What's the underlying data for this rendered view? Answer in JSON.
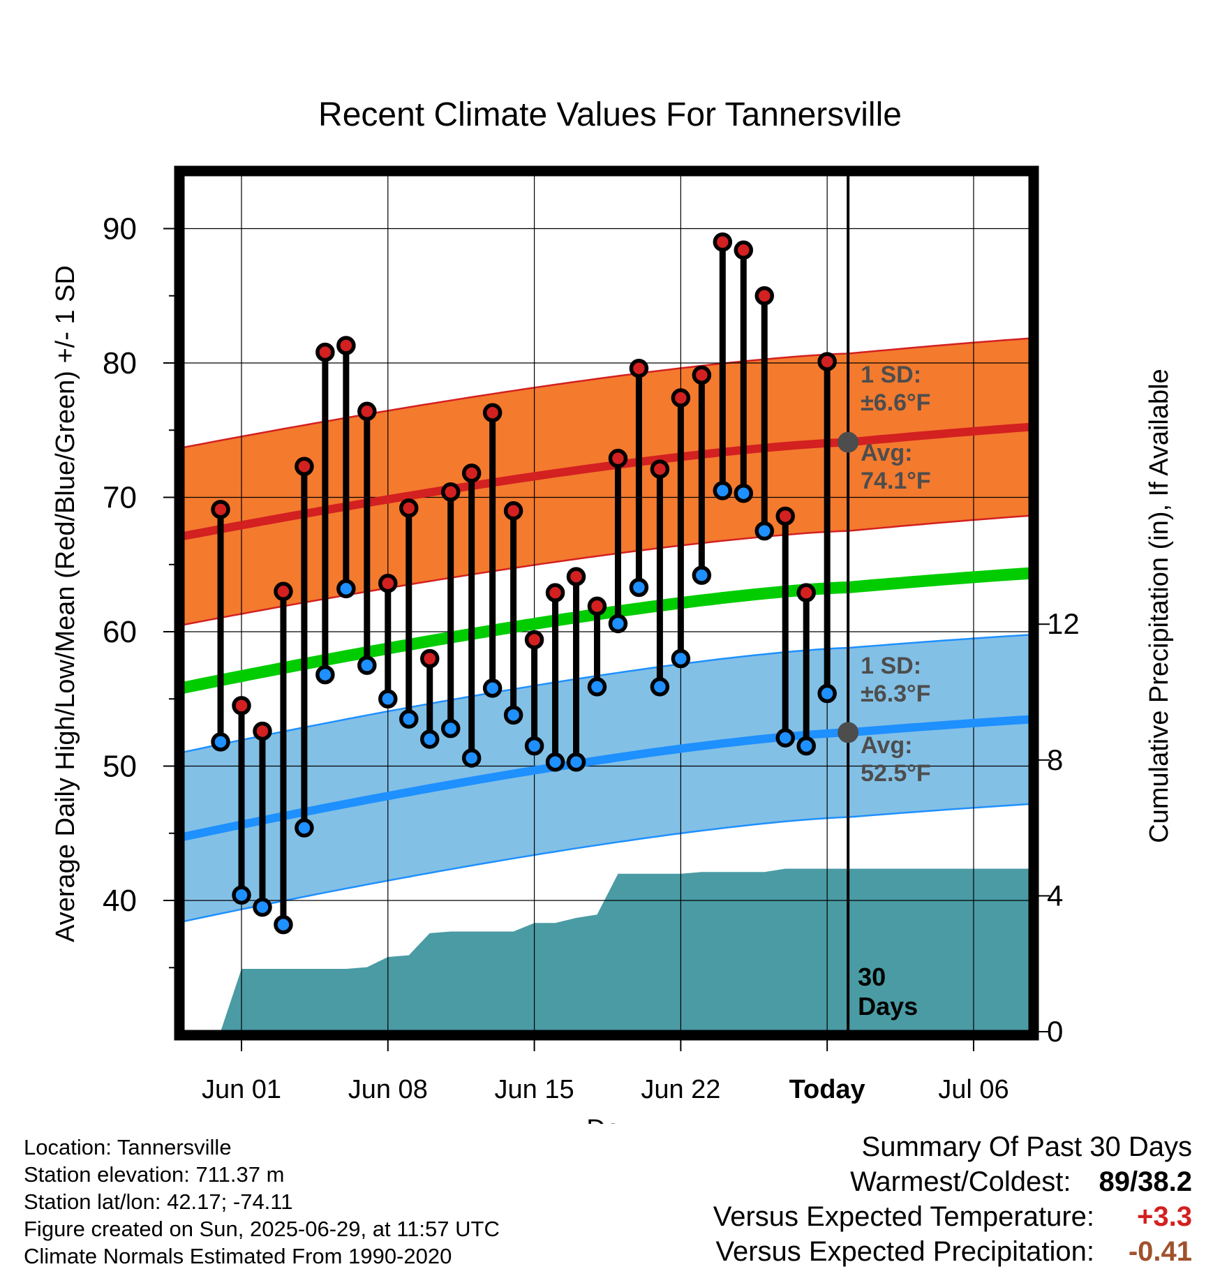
{
  "chart_data": {
    "type": "line",
    "title": "Recent Climate Values For Tannersville",
    "xlabel": "Day",
    "ylabel_left": "Average Daily High/Low/Mean (Red/Blue/Green) +/- 1 SD",
    "ylabel_right": "Cumulative Precipitation (in), If Available",
    "ylim_left": [
      30,
      95
    ],
    "ylim_right": [
      0,
      22
    ],
    "y_ticks_left": [
      40,
      50,
      60,
      70,
      80,
      90
    ],
    "y_ticks_right": [
      0,
      4,
      8,
      12
    ],
    "x_ticks": [
      "Jun 01",
      "Jun 08",
      "Jun 15",
      "Jun 22",
      "Today",
      "Jul 06"
    ],
    "today_marker": "30\nDays",
    "daily_high": [
      69.1,
      54.5,
      52.6,
      63.0,
      72.3,
      80.8,
      81.3,
      76.4,
      63.6,
      69.2,
      58.0,
      70.4,
      71.8,
      76.3,
      69.0,
      59.4,
      62.9,
      64.1,
      61.9,
      72.9,
      79.6,
      72.1,
      77.4,
      79.1,
      89.0,
      88.4,
      85.0,
      68.6,
      62.9,
      80.1
    ],
    "daily_low": [
      51.8,
      40.4,
      39.5,
      38.2,
      45.4,
      56.8,
      63.2,
      57.5,
      55.0,
      53.5,
      52.0,
      52.8,
      50.6,
      55.8,
      53.8,
      51.5,
      50.3,
      50.3,
      55.9,
      60.6,
      63.3,
      55.9,
      58.0,
      64.2,
      70.5,
      70.3,
      67.5,
      52.1,
      51.5,
      55.4
    ],
    "normal_high": {
      "start": 66.9,
      "today": 74.1,
      "end": 75.5
    },
    "normal_high_sd": 6.6,
    "normal_low": {
      "start": 44.5,
      "today": 52.5,
      "end": 53.7
    },
    "normal_low_sd": 6.3,
    "normal_mean": {
      "start": 55.6,
      "today": 63.3,
      "end": 64.6
    },
    "cumulative_precip": [
      0,
      1.85,
      1.85,
      1.85,
      1.85,
      1.85,
      1.85,
      1.9,
      2.2,
      2.25,
      2.9,
      2.95,
      2.95,
      2.95,
      2.95,
      3.2,
      3.2,
      3.35,
      3.45,
      4.65,
      4.65,
      4.65,
      4.65,
      4.7,
      4.7,
      4.7,
      4.7,
      4.8,
      4.8,
      4.8,
      4.8
    ],
    "annotations": {
      "high_sd": "1 SD:\n±6.6°F",
      "high_avg": "Avg:\n74.1°F",
      "low_sd": "1 SD:\n±6.3°F",
      "low_avg": "Avg:\n52.5°F"
    },
    "colors": {
      "high": "#d32020",
      "high_band": "#f47a2e",
      "low": "#1e90ff",
      "low_band": "#83c0e6",
      "mean": "#00cc00",
      "precip": "#4a9ba4",
      "annotation": "#4d4d4d"
    },
    "grid": true
  },
  "footer": {
    "location": "Location: Tannersville",
    "elevation": "Station elevation: 711.37 m",
    "latlon": "Station lat/lon: 42.17; -74.11",
    "created": "Figure created on Sun, 2025-06-29, at 11:57 UTC",
    "normals": "Climate Normals Estimated From 1990-2020"
  },
  "summary": {
    "title": "Summary Of Past 30 Days",
    "warm_cold_label": "Warmest/Coldest:",
    "warm_cold_value": "89/38.2",
    "temp_label": "Versus Expected Temperature:",
    "temp_value": "+3.3",
    "temp_color": "#d32020",
    "precip_label": "Versus Expected Precipitation:",
    "precip_value": "-0.41",
    "precip_color": "#a0522d"
  }
}
